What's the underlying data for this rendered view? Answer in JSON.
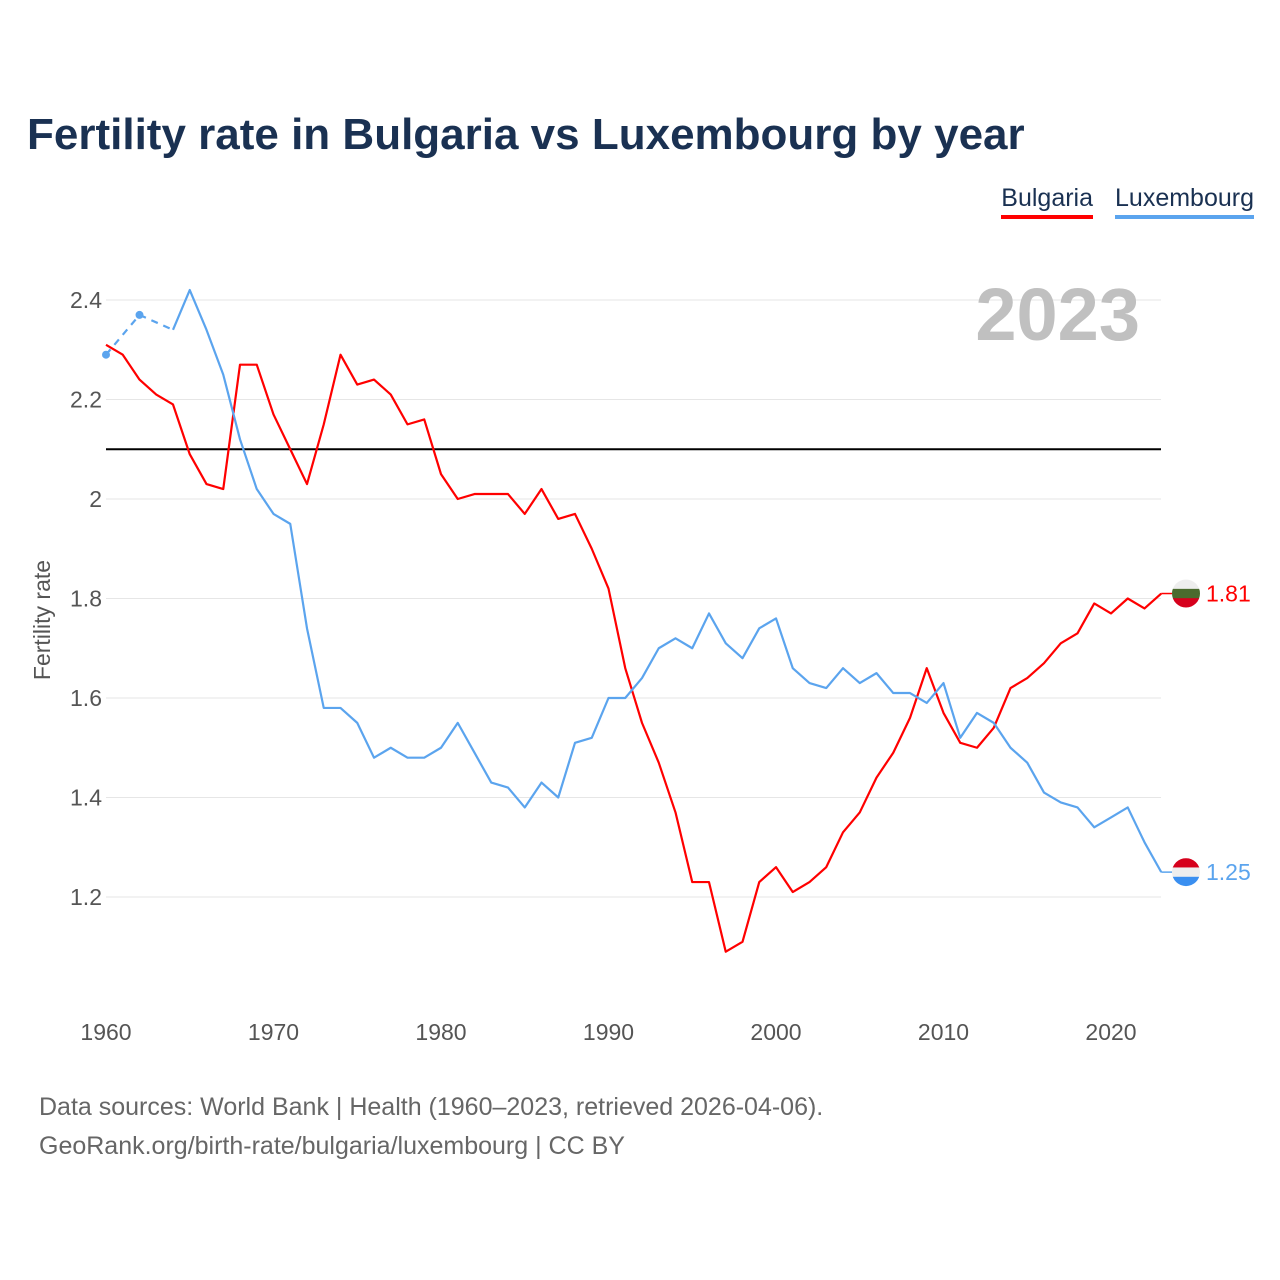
{
  "chart_data": {
    "type": "line",
    "title": "Fertility rate in Bulgaria vs Luxembourg by year",
    "xlabel": "",
    "ylabel": "Fertility rate",
    "year_label": "2023",
    "xlim": [
      1960,
      2023
    ],
    "ylim": [
      1.05,
      2.45
    ],
    "xticks": [
      1960,
      1970,
      1980,
      1990,
      2000,
      2010,
      2020
    ],
    "yticks": [
      1.2,
      1.4,
      1.6,
      1.8,
      2,
      2.2,
      2.4
    ],
    "ytick_labels": [
      "1.2",
      "1.4",
      "1.6",
      "1.8",
      "2",
      "2.2",
      "2.4"
    ],
    "reference_line": 2.1,
    "grid": true,
    "legend": "top-right",
    "x": [
      1960,
      1961,
      1962,
      1963,
      1964,
      1965,
      1966,
      1967,
      1968,
      1969,
      1970,
      1971,
      1972,
      1973,
      1974,
      1975,
      1976,
      1977,
      1978,
      1979,
      1980,
      1981,
      1982,
      1983,
      1984,
      1985,
      1986,
      1987,
      1988,
      1989,
      1990,
      1991,
      1992,
      1993,
      1994,
      1995,
      1996,
      1997,
      1998,
      1999,
      2000,
      2001,
      2002,
      2003,
      2004,
      2005,
      2006,
      2007,
      2008,
      2009,
      2010,
      2011,
      2012,
      2013,
      2014,
      2015,
      2016,
      2017,
      2018,
      2019,
      2020,
      2021,
      2022,
      2023
    ],
    "series": [
      {
        "name": "Bulgaria",
        "color": "#ff0000",
        "end_label": "1.81",
        "flag": [
          "#eeeeee",
          "#4a6b2e",
          "#d6001c"
        ],
        "values": [
          2.31,
          2.29,
          2.24,
          2.21,
          2.19,
          2.09,
          2.03,
          2.02,
          2.27,
          2.27,
          2.17,
          2.1,
          2.03,
          2.15,
          2.29,
          2.23,
          2.24,
          2.21,
          2.15,
          2.16,
          2.05,
          2.0,
          2.01,
          2.01,
          2.01,
          1.97,
          2.02,
          1.96,
          1.97,
          1.9,
          1.82,
          1.66,
          1.55,
          1.47,
          1.37,
          1.23,
          1.23,
          1.09,
          1.11,
          1.23,
          1.26,
          1.21,
          1.23,
          1.26,
          1.33,
          1.37,
          1.44,
          1.49,
          1.56,
          1.66,
          1.57,
          1.51,
          1.5,
          1.54,
          1.62,
          1.64,
          1.67,
          1.71,
          1.73,
          1.79,
          1.77,
          1.8,
          1.78,
          1.81
        ]
      },
      {
        "name": "Luxembourg",
        "color": "#5ba4ee",
        "end_label": "1.25",
        "flag": [
          "#d6001c",
          "#eeeeee",
          "#3a8ff0"
        ],
        "values": [
          2.29,
          null,
          2.37,
          null,
          2.34,
          2.42,
          2.34,
          2.25,
          2.12,
          2.02,
          1.97,
          1.95,
          1.74,
          1.58,
          1.58,
          1.55,
          1.48,
          1.5,
          1.48,
          1.48,
          1.5,
          1.55,
          1.49,
          1.43,
          1.42,
          1.38,
          1.43,
          1.4,
          1.51,
          1.52,
          1.6,
          1.6,
          1.64,
          1.7,
          1.72,
          1.7,
          1.77,
          1.71,
          1.68,
          1.74,
          1.76,
          1.66,
          1.63,
          1.62,
          1.66,
          1.63,
          1.65,
          1.61,
          1.61,
          1.59,
          1.63,
          1.52,
          1.57,
          1.55,
          1.5,
          1.47,
          1.41,
          1.39,
          1.38,
          1.34,
          1.36,
          1.38,
          1.31,
          1.25
        ]
      }
    ]
  },
  "footer": {
    "source_line": "Data sources: World Bank | Health (1960–2023, retrieved 2026-04-06).",
    "credit_line": "GeoRank.org/birth-rate/bulgaria/luxembourg | CC BY"
  }
}
